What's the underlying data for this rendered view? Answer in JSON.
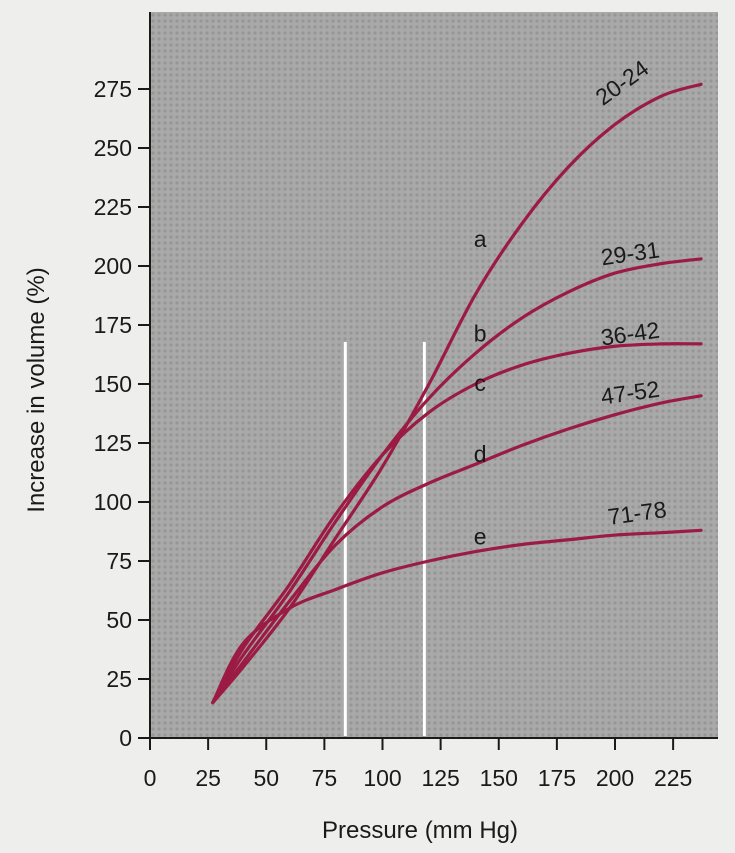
{
  "chart_data": {
    "type": "line",
    "title": "",
    "xlabel": "Pressure (mm Hg)",
    "ylabel": "Increase in volume (%)",
    "xlim": [
      0,
      240
    ],
    "ylim": [
      0,
      280
    ],
    "xticks": [
      "0",
      "25",
      "50",
      "75",
      "100",
      "125",
      "150",
      "175",
      "200",
      "225"
    ],
    "yticks": [
      "0",
      "25",
      "50",
      "75",
      "100",
      "125",
      "150",
      "175",
      "200",
      "225",
      "250",
      "275"
    ],
    "grid": false,
    "reference_lines_x": [
      84,
      118
    ],
    "colors": {
      "series": "#9b1b45",
      "plot_bg": "#a9a9a9",
      "reference_line": "#ffffff"
    },
    "series": [
      {
        "name": "20-24",
        "letter": "a",
        "x": [
          27,
          40,
          60,
          80,
          100,
          120,
          140,
          160,
          180,
          200,
          220,
          237
        ],
        "y": [
          15,
          30,
          55,
          85,
          115,
          150,
          188,
          218,
          242,
          260,
          272,
          277
        ]
      },
      {
        "name": "29-31",
        "letter": "b",
        "x": [
          27,
          40,
          60,
          80,
          100,
          120,
          140,
          160,
          180,
          200,
          220,
          237
        ],
        "y": [
          15,
          35,
          62,
          92,
          120,
          144,
          163,
          178,
          189,
          197,
          201,
          203
        ]
      },
      {
        "name": "36-42",
        "letter": "c",
        "x": [
          27,
          40,
          60,
          80,
          100,
          120,
          140,
          160,
          180,
          200,
          220,
          237
        ],
        "y": [
          15,
          38,
          65,
          95,
          120,
          138,
          150,
          158,
          163,
          166,
          167,
          167
        ]
      },
      {
        "name": "47-52",
        "letter": "d",
        "x": [
          27,
          40,
          60,
          80,
          100,
          120,
          140,
          160,
          180,
          200,
          220,
          237
        ],
        "y": [
          15,
          32,
          58,
          82,
          98,
          108,
          116,
          124,
          131,
          137,
          142,
          145
        ]
      },
      {
        "name": "71-78",
        "letter": "e",
        "x": [
          27,
          40,
          60,
          80,
          100,
          120,
          140,
          160,
          180,
          200,
          220,
          237
        ],
        "y": [
          15,
          40,
          55,
          63,
          70,
          75,
          79,
          82,
          84,
          86,
          87,
          88
        ]
      }
    ],
    "series_label_positions": [
      {
        "letter_at": [
          142,
          208
        ],
        "name_at": [
          205,
          275
        ]
      },
      {
        "letter_at": [
          142,
          168
        ],
        "name_at": [
          207,
          202
        ]
      },
      {
        "letter_at": [
          142,
          147
        ],
        "name_at": [
          207,
          168
        ]
      },
      {
        "letter_at": [
          142,
          117
        ],
        "name_at": [
          207,
          143
        ]
      },
      {
        "letter_at": [
          142,
          82
        ],
        "name_at": [
          210,
          92
        ]
      }
    ]
  }
}
